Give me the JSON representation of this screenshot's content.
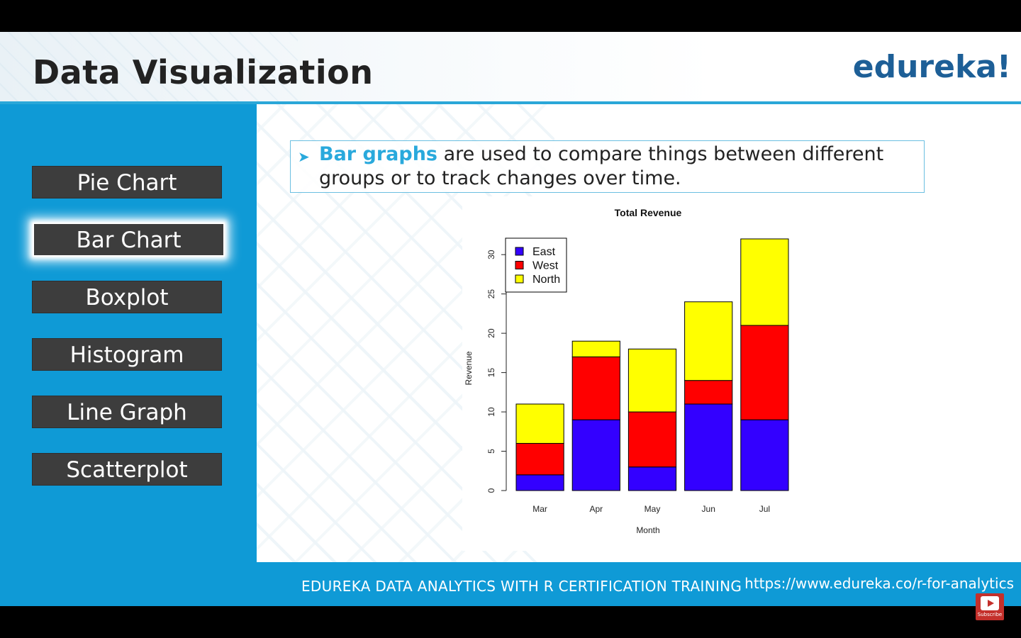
{
  "header": {
    "title": "Data Visualization",
    "logo": "edureka!"
  },
  "sidebar": {
    "items": [
      {
        "label": "Pie Chart",
        "active": false
      },
      {
        "label": "Bar Chart",
        "active": true
      },
      {
        "label": "Boxplot",
        "active": false
      },
      {
        "label": "Histogram",
        "active": false
      },
      {
        "label": "Line Graph",
        "active": false
      },
      {
        "label": "Scatterplot",
        "active": false
      }
    ]
  },
  "callout": {
    "highlight": "Bar graphs",
    "text": " are used to compare things between different groups or to track changes over time."
  },
  "chart_data": {
    "type": "bar",
    "stacked": true,
    "title": "Total Revenue",
    "xlabel": "Month",
    "ylabel": "Revenue",
    "categories": [
      "Mar",
      "Apr",
      "May",
      "Jun",
      "Jul"
    ],
    "series": [
      {
        "name": "East",
        "values": [
          2,
          9,
          3,
          11,
          9
        ],
        "color": "#3300ff"
      },
      {
        "name": "West",
        "values": [
          4,
          8,
          7,
          3,
          12
        ],
        "color": "#ff0000"
      },
      {
        "name": "North",
        "values": [
          5,
          2,
          8,
          10,
          11
        ],
        "color": "#ffff00"
      }
    ],
    "ylim": [
      0,
      32
    ],
    "yticks": [
      0,
      5,
      10,
      15,
      20,
      25,
      30
    ],
    "legend": "top-left",
    "grid": false
  },
  "footer": {
    "title": "EDUREKA DATA ANALYTICS WITH R CERTIFICATION TRAINING",
    "url": "https://www.edureka.co/r-for-analytics"
  },
  "subscribe": {
    "label": "Subscribe"
  },
  "colors": {
    "accent": "#0f9ad6",
    "button": "#3d3d3d",
    "highlight": "#29a9dc",
    "logo": "#1d5f97"
  }
}
